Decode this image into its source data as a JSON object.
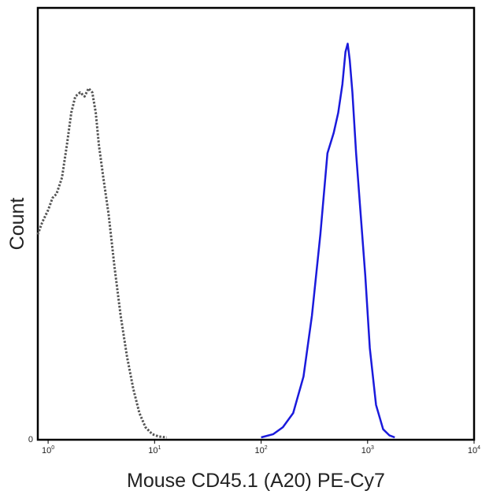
{
  "chart_data": {
    "type": "line",
    "title": "",
    "xlabel": "Mouse CD45.1 (A20) PE-Cy7",
    "ylabel": "Count",
    "x_scale": "log",
    "xlim": [
      0.8,
      10000
    ],
    "ylim": [
      0,
      1
    ],
    "y_tick_labels": [
      "0"
    ],
    "x_ticks": [
      {
        "value": 1,
        "base": "10",
        "exp": "0"
      },
      {
        "value": 10,
        "base": "10",
        "exp": "1"
      },
      {
        "value": 100,
        "base": "10",
        "exp": "2"
      },
      {
        "value": 1000,
        "base": "10",
        "exp": "3"
      },
      {
        "value": 10000,
        "base": "10",
        "exp": "4"
      }
    ],
    "grid": false,
    "legend": "none",
    "series": [
      {
        "color": "#555555",
        "style": "dashed",
        "x": [
          0.8,
          0.88,
          1.0,
          1.1,
          1.2,
          1.35,
          1.5,
          1.65,
          1.8,
          2.0,
          2.2,
          2.4,
          2.6,
          2.8,
          3.0,
          3.3,
          3.7,
          4.2,
          4.8,
          5.5,
          6.3,
          7.2,
          8.2,
          9.5,
          11.0,
          13.0
        ],
        "y": [
          0.5,
          0.53,
          0.56,
          0.59,
          0.6,
          0.64,
          0.72,
          0.8,
          0.84,
          0.85,
          0.84,
          0.86,
          0.85,
          0.8,
          0.72,
          0.64,
          0.55,
          0.42,
          0.3,
          0.2,
          0.12,
          0.06,
          0.025,
          0.008,
          0.002,
          0.0
        ]
      },
      {
        "color": "#1a1adc",
        "style": "solid",
        "x": [
          100,
          130,
          160,
          200,
          250,
          300,
          360,
          420,
          480,
          530,
          580,
          620,
          650,
          680,
          720,
          780,
          850,
          950,
          1050,
          1200,
          1400,
          1600,
          1800
        ],
        "y": [
          0.0,
          0.008,
          0.025,
          0.06,
          0.15,
          0.3,
          0.5,
          0.7,
          0.75,
          0.8,
          0.87,
          0.95,
          0.97,
          0.93,
          0.85,
          0.7,
          0.57,
          0.4,
          0.22,
          0.08,
          0.02,
          0.005,
          0.0
        ]
      }
    ]
  }
}
